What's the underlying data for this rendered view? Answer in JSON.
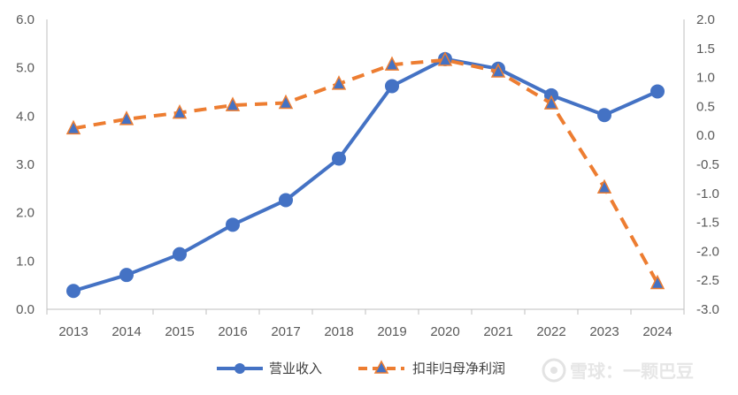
{
  "chart_data": {
    "type": "line",
    "categories": [
      "2013",
      "2014",
      "2015",
      "2016",
      "2017",
      "2018",
      "2019",
      "2020",
      "2021",
      "2022",
      "2023",
      "2024"
    ],
    "y_left": {
      "ylim": [
        0,
        6
      ],
      "ticks": [
        "0.0",
        "1.0",
        "2.0",
        "3.0",
        "4.0",
        "5.0",
        "6.0"
      ]
    },
    "y_right": {
      "ylim": [
        -3,
        2
      ],
      "ticks": [
        "-3.0",
        "-2.5",
        "-2.0",
        "-1.5",
        "-1.0",
        "-0.5",
        "0.0",
        "0.5",
        "1.0",
        "1.5",
        "2.0"
      ]
    },
    "series": [
      {
        "name": "营业收入",
        "axis": "left",
        "style": "solid",
        "marker": "circle",
        "color": "#4472C4",
        "values": [
          0.38,
          0.71,
          1.14,
          1.75,
          2.26,
          3.12,
          4.62,
          5.18,
          4.98,
          4.43,
          4.02,
          4.51
        ]
      },
      {
        "name": "扣非归母净利润",
        "axis": "right",
        "style": "dashed",
        "marker": "triangle",
        "color": "#ED7D31",
        "values": [
          0.12,
          0.28,
          0.39,
          0.52,
          0.56,
          0.89,
          1.22,
          1.3,
          1.1,
          0.55,
          -0.9,
          -2.55
        ]
      }
    ],
    "grid": false,
    "legend": "bottom"
  },
  "watermark": "雪球：一颗巴豆"
}
